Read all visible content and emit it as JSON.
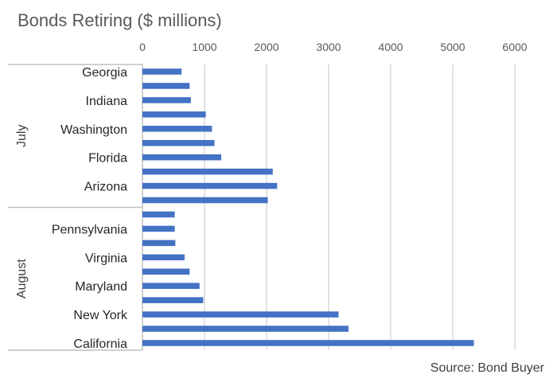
{
  "chart_data": {
    "type": "bar",
    "orientation": "horizontal",
    "title": "Bonds Retiring ($ millions)",
    "source": "Source: Bond Buyer",
    "xlim": [
      0,
      6000
    ],
    "x_ticks": [
      "0",
      "1000",
      "2000",
      "3000",
      "4000",
      "5000",
      "6000"
    ],
    "grid": true,
    "groups": [
      {
        "name": "July",
        "bars": [
          {
            "label": "Georgia",
            "value": 630
          },
          {
            "label": "",
            "value": 760
          },
          {
            "label": "Indiana",
            "value": 780
          },
          {
            "label": "",
            "value": 1020
          },
          {
            "label": "Washington",
            "value": 1120
          },
          {
            "label": "",
            "value": 1160
          },
          {
            "label": "Florida",
            "value": 1270
          },
          {
            "label": "",
            "value": 2100
          },
          {
            "label": "Arizona",
            "value": 2170
          },
          {
            "label": "",
            "value": 2020
          }
        ]
      },
      {
        "name": "August",
        "bars": [
          {
            "label": "",
            "value": 520
          },
          {
            "label": "Pennsylvania",
            "value": 520
          },
          {
            "label": "",
            "value": 530
          },
          {
            "label": "Virginia",
            "value": 680
          },
          {
            "label": "",
            "value": 760
          },
          {
            "label": "Maryland",
            "value": 920
          },
          {
            "label": "",
            "value": 980
          },
          {
            "label": "New York",
            "value": 3160
          },
          {
            "label": "",
            "value": 3320
          },
          {
            "label": "California",
            "value": 5340
          }
        ]
      }
    ],
    "colors": {
      "bar": "#4472c4",
      "grid": "#d9d9d9",
      "axis": "#bfbfbf"
    }
  }
}
